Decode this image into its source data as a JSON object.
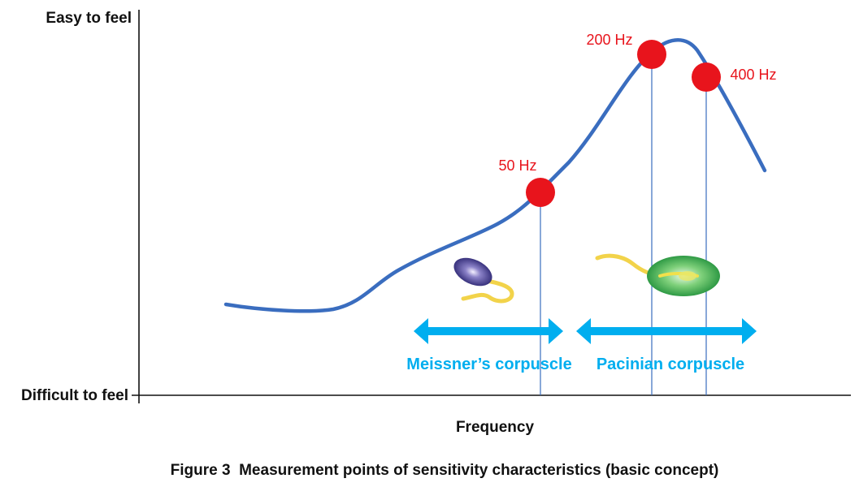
{
  "labels": {
    "y_top": "Easy to feel",
    "y_bottom": "Difficult to feel",
    "x_axis": "Frequency",
    "caption": "Figure 3  Measurement points of sensitivity characteristics (basic concept)"
  },
  "points": [
    {
      "label": "50 Hz"
    },
    {
      "label": "200 Hz"
    },
    {
      "label": "400 Hz"
    }
  ],
  "ranges": [
    {
      "label": "Meissner’s corpuscle"
    },
    {
      "label": "Pacinian corpuscle"
    }
  ],
  "colors": {
    "curve": "#3a6dbf",
    "point": "#e8141c",
    "point_label": "#e8141c",
    "range": "#00aeef",
    "axis": "#111111"
  },
  "icons": {
    "meissner": "meissner-corpuscle-icon",
    "pacinian": "pacinian-corpuscle-icon"
  }
}
